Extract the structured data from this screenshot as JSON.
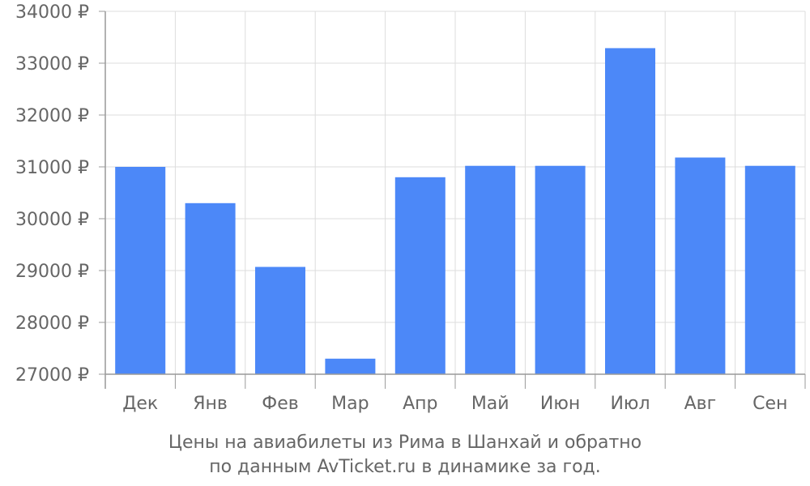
{
  "chart_data": {
    "type": "bar",
    "categories": [
      "Дек",
      "Янв",
      "Фев",
      "Мар",
      "Апр",
      "Май",
      "Июн",
      "Июл",
      "Авг",
      "Сен"
    ],
    "values": [
      31000,
      30300,
      29070,
      27300,
      30800,
      31020,
      31020,
      33290,
      31180,
      31020
    ],
    "ylim": [
      27000,
      34000
    ],
    "yticks": [
      27000,
      28000,
      29000,
      30000,
      31000,
      32000,
      33000,
      34000
    ],
    "y_unit": "₽",
    "grid": true,
    "bar_color": "#4c88f8",
    "grid_color": "#dddddd",
    "axis_color": "#999999",
    "text_color": "#666666"
  },
  "caption": {
    "line1": "Цены на авиабилеты из Рима в Шанхай и обратно",
    "line2": "по данным AvTicket.ru в динамике за год."
  }
}
